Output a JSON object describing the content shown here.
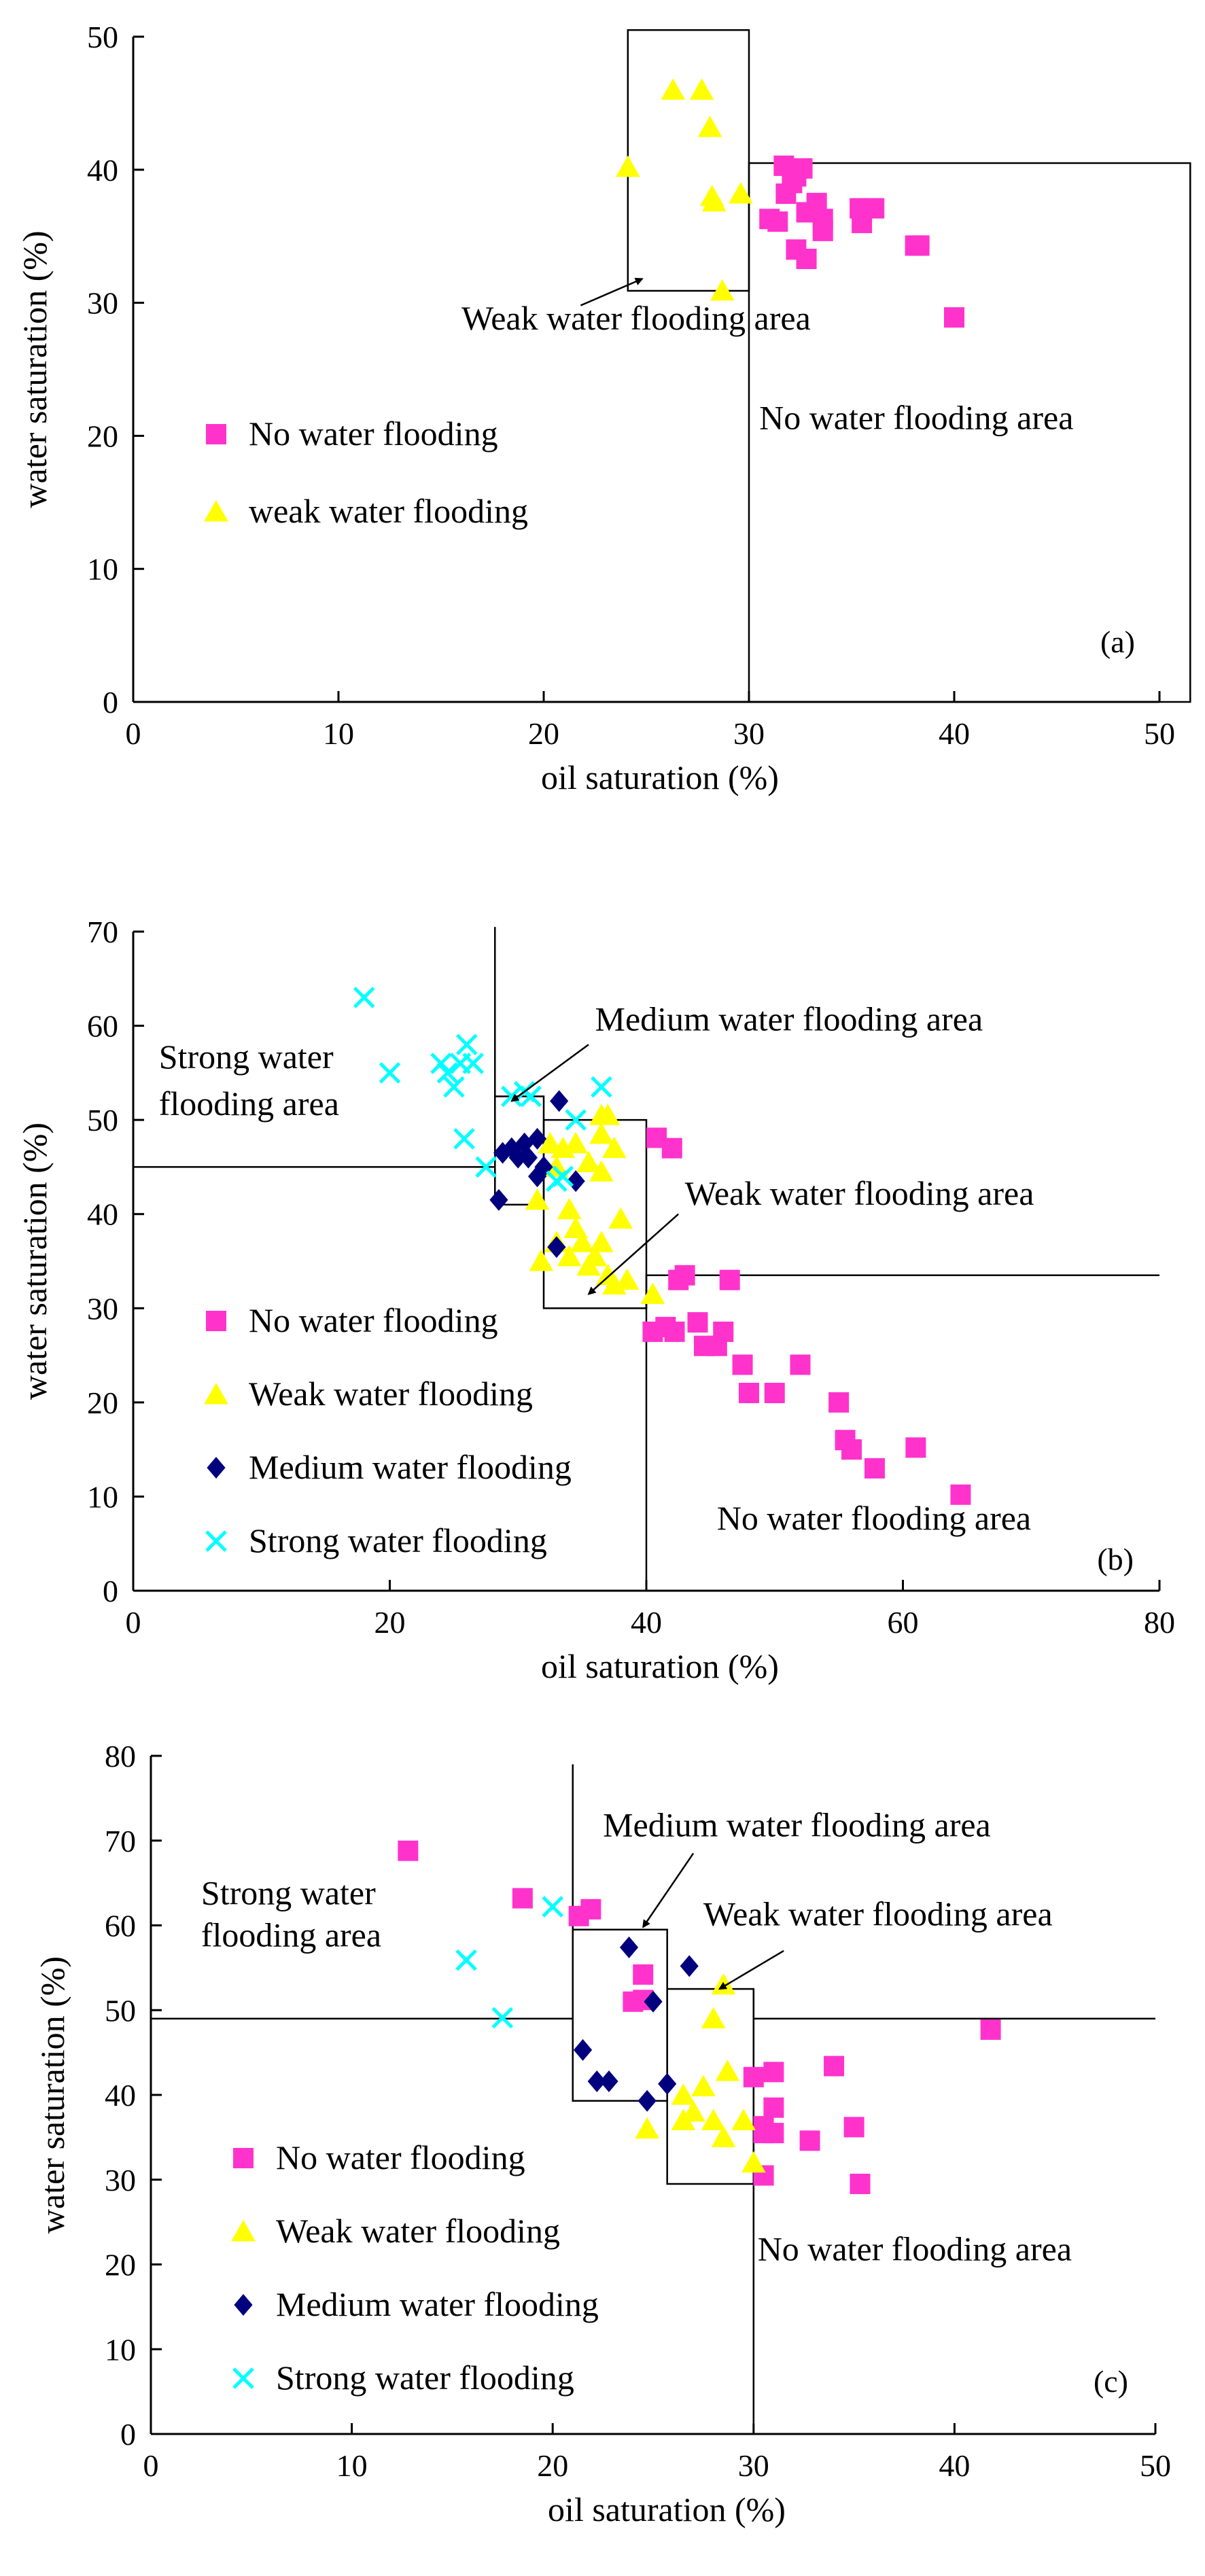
{
  "chart_data": [
    {
      "id": "a",
      "type": "scatter",
      "panel_label": "(a)",
      "xlabel": "oil saturation (%)",
      "ylabel": "water saturation (%)",
      "xlim": [
        0,
        50
      ],
      "ylim": [
        0,
        50
      ],
      "xticks": [
        0,
        10,
        20,
        30,
        40,
        50
      ],
      "yticks": [
        0,
        10,
        20,
        30,
        40,
        50
      ],
      "xtick_labels": [
        "0",
        "10",
        "20",
        "30",
        "40",
        "50"
      ],
      "ytick_labels": [
        "0",
        "10",
        "20",
        "30",
        "40",
        "50"
      ],
      "series": [
        {
          "name": "No water flooding",
          "marker": "square",
          "color": "#ff33cc",
          "points": [
            [
              31.7,
              40.3
            ],
            [
              32.3,
              39.5
            ],
            [
              32.6,
              40.1
            ],
            [
              31.8,
              38.2
            ],
            [
              32.1,
              39.0
            ],
            [
              33.3,
              37.5
            ],
            [
              32.8,
              36.8
            ],
            [
              33.6,
              36.3
            ],
            [
              33.6,
              35.4
            ],
            [
              31.0,
              36.3
            ],
            [
              31.4,
              36.1
            ],
            [
              32.3,
              34.0
            ],
            [
              32.8,
              33.3
            ],
            [
              35.4,
              37.1
            ],
            [
              36.1,
              37.1
            ],
            [
              35.5,
              36.0
            ],
            [
              38.1,
              34.3
            ],
            [
              38.3,
              34.3
            ],
            [
              40.0,
              28.9
            ]
          ]
        },
        {
          "name": "weak water flooding",
          "marker": "triangle",
          "color": "#ffff00",
          "points": [
            [
              24.1,
              40.2
            ],
            [
              26.3,
              46.0
            ],
            [
              27.7,
              46.0
            ],
            [
              28.1,
              43.2
            ],
            [
              28.2,
              38.0
            ],
            [
              28.3,
              37.6
            ],
            [
              29.6,
              38.2
            ],
            [
              28.7,
              30.9
            ]
          ]
        }
      ],
      "regions": [
        {
          "name": "weak-box",
          "x0": 24.1,
          "x1": 30.0,
          "y0": 30.9,
          "y1": 50.5
        },
        {
          "name": "no-box",
          "x0": 30.0,
          "x1": 51.5,
          "y0": 0,
          "y1": 40.5
        }
      ],
      "annotations": [
        {
          "name": "weak-area-label",
          "text": "Weak water flooding  area",
          "x": 24.5,
          "y": 28.0,
          "anchor": "middle",
          "arrow_from": [
            21.8,
            29.8
          ],
          "arrow_to": [
            24.8,
            31.8
          ]
        },
        {
          "name": "no-area-label",
          "text": "No water flooding area",
          "x": 30.5,
          "y": 20.5,
          "anchor": "start"
        }
      ],
      "legend": [
        {
          "label": "No water flooding",
          "marker": "square",
          "color": "#ff33cc"
        },
        {
          "label": "weak water flooding",
          "marker": "triangle",
          "color": "#ffff00"
        }
      ]
    },
    {
      "id": "b",
      "type": "scatter",
      "panel_label": "(b)",
      "xlabel": "oil saturation (%)",
      "ylabel": "water saturation (%)",
      "xlim": [
        0,
        80
      ],
      "ylim": [
        0,
        70
      ],
      "xticks": [
        0,
        20,
        40,
        60,
        80
      ],
      "yticks": [
        0,
        10,
        20,
        30,
        40,
        50,
        60,
        70
      ],
      "xtick_labels": [
        "0",
        "20",
        "40",
        "60",
        "80"
      ],
      "ytick_labels": [
        "0",
        "10",
        "20",
        "30",
        "40",
        "50",
        "60",
        "70"
      ],
      "series": [
        {
          "name": "No water flooding",
          "marker": "square",
          "color": "#ff33cc",
          "points": [
            [
              40.8,
              48.1
            ],
            [
              42.0,
              47.0
            ],
            [
              41.5,
              28.0
            ],
            [
              43.0,
              33.5
            ],
            [
              42.5,
              33.0
            ],
            [
              46.5,
              33.0
            ],
            [
              40.5,
              27.5
            ],
            [
              42.2,
              27.5
            ],
            [
              44.0,
              28.5
            ],
            [
              44.5,
              26.0
            ],
            [
              45.5,
              26.0
            ],
            [
              46.0,
              27.5
            ],
            [
              47.5,
              24.0
            ],
            [
              48.0,
              21.0
            ],
            [
              50.0,
              21.0
            ],
            [
              52.0,
              24.0
            ],
            [
              55.0,
              20.0
            ],
            [
              55.5,
              16.0
            ],
            [
              56.0,
              15.0
            ],
            [
              57.8,
              13.0
            ],
            [
              61.0,
              15.2
            ],
            [
              64.5,
              10.2
            ]
          ]
        },
        {
          "name": "Weak water flooding",
          "marker": "triangle",
          "color": "#ffff00",
          "points": [
            [
              31.5,
              41.5
            ],
            [
              32.5,
              47.5
            ],
            [
              33.5,
              47.0
            ],
            [
              34.5,
              47.5
            ],
            [
              35.5,
              45.5
            ],
            [
              36.5,
              48.5
            ],
            [
              37.5,
              47.0
            ],
            [
              37.0,
              50.5
            ],
            [
              36.5,
              44.5
            ],
            [
              33.0,
              45.0
            ],
            [
              34.0,
              40.5
            ],
            [
              34.5,
              38.5
            ],
            [
              35.0,
              37.0
            ],
            [
              36.0,
              35.5
            ],
            [
              36.5,
              37.0
            ],
            [
              38.0,
              39.5
            ],
            [
              31.8,
              35.0
            ],
            [
              33.0,
              37.0
            ],
            [
              34.0,
              35.5
            ],
            [
              35.5,
              34.5
            ],
            [
              37.0,
              33.5
            ],
            [
              37.5,
              32.5
            ],
            [
              38.5,
              33.0
            ],
            [
              40.5,
              31.5
            ],
            [
              36.5,
              50.5
            ]
          ]
        },
        {
          "name": "Medium water flooding",
          "marker": "diamond",
          "color": "#00007f",
          "points": [
            [
              28.5,
              41.5
            ],
            [
              28.8,
              46.5
            ],
            [
              29.5,
              47.0
            ],
            [
              30.0,
              46.0
            ],
            [
              30.5,
              47.5
            ],
            [
              30.8,
              46.0
            ],
            [
              31.5,
              48.0
            ],
            [
              32.0,
              45.0
            ],
            [
              31.5,
              44.0
            ],
            [
              33.0,
              36.5
            ],
            [
              33.2,
              52.0
            ],
            [
              34.5,
              43.5
            ]
          ]
        },
        {
          "name": "Strong water flooding",
          "marker": "x",
          "color": "#00ffff",
          "points": [
            [
              18.0,
              63.0
            ],
            [
              20.0,
              55.0
            ],
            [
              24.0,
              56.0
            ],
            [
              24.5,
              55.0
            ],
            [
              25.0,
              53.5
            ],
            [
              25.5,
              56.0
            ],
            [
              26.0,
              58.0
            ],
            [
              26.5,
              56.0
            ],
            [
              25.8,
              48.0
            ],
            [
              27.5,
              45.0
            ],
            [
              29.5,
              52.5
            ],
            [
              30.5,
              53.0
            ],
            [
              31.0,
              52.5
            ],
            [
              33.0,
              43.5
            ],
            [
              33.5,
              44.0
            ],
            [
              34.5,
              50.0
            ],
            [
              36.5,
              53.5
            ]
          ]
        }
      ],
      "regions": [
        {
          "name": "medium-box",
          "x0": 28.2,
          "x1": 32.0,
          "y0": 41.0,
          "y1": 52.5
        },
        {
          "name": "medium-line",
          "x0": 28.2,
          "x1": 28.2,
          "y0": 41.0,
          "y1": 70.5
        },
        {
          "name": "strong-line",
          "x0": 0,
          "x1": 28.2,
          "y0": 45.0,
          "y1": 45.0
        },
        {
          "name": "weak-box",
          "x0": 32.0,
          "x1": 40.0,
          "y0": 30.0,
          "y1": 50.0
        },
        {
          "name": "no-line-h",
          "x0": 40.0,
          "x1": 80.0,
          "y0": 33.5,
          "y1": 33.5
        },
        {
          "name": "no-line-v",
          "x0": 40.0,
          "x1": 40.0,
          "y0": 0,
          "y1": 33.5
        }
      ],
      "annotations": [
        {
          "name": "medium-area-label",
          "text": "Medium water flooding area",
          "x": 36.0,
          "y": 59.5,
          "anchor": "start",
          "arrow_from": [
            35.5,
            58.0
          ],
          "arrow_to": [
            29.5,
            52.0
          ]
        },
        {
          "name": "strong-area-label-1",
          "text": "Strong  water",
          "x": 2.0,
          "y": 55.5,
          "anchor": "start"
        },
        {
          "name": "strong-area-label-2",
          "text": "flooding area",
          "x": 2.0,
          "y": 50.5,
          "anchor": "start"
        },
        {
          "name": "weak-area-label",
          "text": "Weak water flooding area",
          "x": 43.0,
          "y": 41.0,
          "anchor": "start",
          "arrow_from": [
            42.5,
            40.0
          ],
          "arrow_to": [
            35.5,
            31.5
          ]
        },
        {
          "name": "no-area-label",
          "text": "No water flooding area",
          "x": 45.5,
          "y": 6.5,
          "anchor": "start"
        }
      ],
      "legend": [
        {
          "label": "No water flooding",
          "marker": "square",
          "color": "#ff33cc"
        },
        {
          "label": "Weak water flooding",
          "marker": "triangle",
          "color": "#ffff00"
        },
        {
          "label": "Medium water flooding",
          "marker": "diamond",
          "color": "#00007f"
        },
        {
          "label": "Strong water flooding",
          "marker": "x",
          "color": "#00ffff"
        }
      ]
    },
    {
      "id": "c",
      "type": "scatter",
      "panel_label": "(c)",
      "xlabel": "oil saturation (%)",
      "ylabel": "water saturation (%)",
      "xlim": [
        0,
        50
      ],
      "ylim": [
        0,
        80
      ],
      "xticks": [
        0,
        10,
        20,
        30,
        40,
        50
      ],
      "yticks": [
        0,
        10,
        20,
        30,
        40,
        50,
        60,
        70,
        80
      ],
      "xtick_labels": [
        "0",
        "10",
        "20",
        "30",
        "40",
        "50"
      ],
      "ytick_labels": [
        "0",
        "10",
        "20",
        "30",
        "40",
        "50",
        "60",
        "70",
        "80"
      ],
      "series": [
        {
          "name": "No water flooding",
          "marker": "square",
          "color": "#ff33cc",
          "points": [
            [
              12.8,
              68.8
            ],
            [
              18.5,
              63.2
            ],
            [
              21.3,
              61.1
            ],
            [
              21.9,
              61.9
            ],
            [
              24.5,
              54.2
            ],
            [
              24.0,
              51.0
            ],
            [
              24.5,
              51.2
            ],
            [
              30.0,
              42.1
            ],
            [
              31.0,
              42.7
            ],
            [
              30.5,
              36.3
            ],
            [
              30.5,
              35.5
            ],
            [
              31.0,
              35.5
            ],
            [
              31.0,
              38.5
            ],
            [
              30.5,
              30.5
            ],
            [
              32.8,
              34.6
            ],
            [
              34.0,
              43.4
            ],
            [
              35.0,
              36.2
            ],
            [
              35.3,
              29.5
            ],
            [
              41.8,
              47.7
            ]
          ]
        },
        {
          "name": "Weak water flooding",
          "marker": "triangle",
          "color": "#ffff00",
          "points": [
            [
              24.7,
              36.0
            ],
            [
              26.5,
              40.0
            ],
            [
              27.5,
              41.0
            ],
            [
              27.0,
              38.0
            ],
            [
              28.0,
              37.0
            ],
            [
              28.5,
              35.0
            ],
            [
              28.0,
              49.0
            ],
            [
              28.5,
              53.0
            ],
            [
              28.7,
              42.8
            ],
            [
              29.5,
              37.0
            ],
            [
              30.0,
              32.0
            ],
            [
              26.5,
              37.0
            ]
          ]
        },
        {
          "name": "Medium water flooding",
          "marker": "diamond",
          "color": "#00007f",
          "points": [
            [
              21.5,
              45.3
            ],
            [
              22.2,
              41.6
            ],
            [
              22.8,
              41.6
            ],
            [
              23.8,
              57.4
            ],
            [
              24.7,
              39.3
            ],
            [
              25.7,
              41.3
            ],
            [
              26.8,
              55.2
            ],
            [
              25.0,
              51.0
            ]
          ]
        },
        {
          "name": "Strong water flooding",
          "marker": "x",
          "color": "#00ffff",
          "points": [
            [
              15.7,
              55.9
            ],
            [
              17.5,
              49.1
            ],
            [
              20.0,
              62.2
            ]
          ]
        }
      ],
      "regions": [
        {
          "name": "medium-box",
          "x0": 21.0,
          "x1": 25.7,
          "y0": 39.3,
          "y1": 59.5
        },
        {
          "name": "medium-line",
          "x0": 21.0,
          "x1": 21.0,
          "y0": 39.3,
          "y1": 79.0
        },
        {
          "name": "strong-line",
          "x0": 0,
          "x1": 21.0,
          "y0": 49.0,
          "y1": 49.0
        },
        {
          "name": "weak-box",
          "x0": 25.7,
          "x1": 30.0,
          "y0": 29.5,
          "y1": 52.5
        },
        {
          "name": "no-line-h",
          "x0": 30.0,
          "x1": 50.0,
          "y0": 49.0,
          "y1": 49.0
        },
        {
          "name": "no-line-v",
          "x0": 30.0,
          "x1": 30.0,
          "y0": 0,
          "y1": 52.5
        }
      ],
      "annotations": [
        {
          "name": "medium-area-label",
          "text": "Medium water flooding area",
          "x": 22.5,
          "y": 70.5,
          "anchor": "start",
          "arrow_from": [
            27.0,
            68.5
          ],
          "arrow_to": [
            24.5,
            59.8
          ]
        },
        {
          "name": "strong-area-label-1",
          "text": "Strong  water",
          "x": 2.5,
          "y": 62.5,
          "anchor": "start"
        },
        {
          "name": "strong-area-label-2",
          "text": "flooding area",
          "x": 2.5,
          "y": 57.5,
          "anchor": "start"
        },
        {
          "name": "weak-area-label",
          "text": "Weak water flooding area",
          "x": 27.5,
          "y": 60.0,
          "anchor": "start",
          "arrow_from": [
            31.5,
            57.0
          ],
          "arrow_to": [
            28.3,
            52.5
          ]
        },
        {
          "name": "no-area-label",
          "text": "No water flooding area",
          "x": 30.2,
          "y": 20.5,
          "anchor": "start"
        }
      ],
      "legend": [
        {
          "label": "No water flooding",
          "marker": "square",
          "color": "#ff33cc"
        },
        {
          "label": "Weak water flooding",
          "marker": "triangle",
          "color": "#ffff00"
        },
        {
          "label": "Medium water flooding",
          "marker": "diamond",
          "color": "#00007f"
        },
        {
          "label": "Strong water flooding",
          "marker": "x",
          "color": "#00ffff"
        }
      ]
    }
  ]
}
